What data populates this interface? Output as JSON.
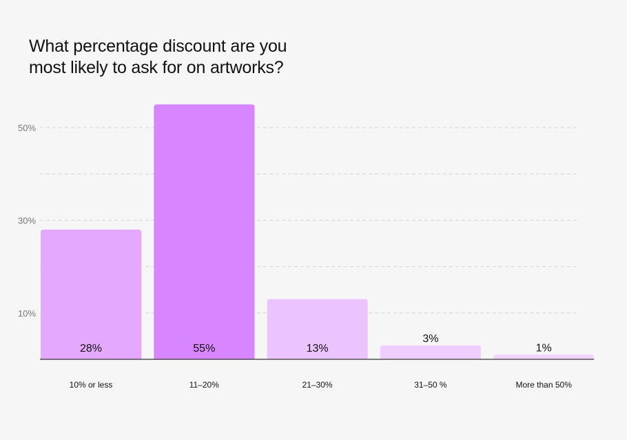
{
  "chart_data": {
    "type": "bar",
    "title_lines": [
      "What percentage discount are you",
      "most likely to ask for on artworks?"
    ],
    "categories": [
      "10% or less",
      "11–20%",
      "21–30%",
      "31–50 %",
      "More than 50%"
    ],
    "values": [
      28,
      55,
      13,
      3,
      1
    ],
    "value_labels": [
      "28%",
      "55%",
      "13%",
      "3%",
      "1%"
    ],
    "bar_colors": [
      "#e5a8ff",
      "#d886ff",
      "#ebc4ff",
      "#f0cdff",
      "#f2d4ff"
    ],
    "ylim": [
      0,
      60
    ],
    "y_ticks": [
      10,
      30,
      50
    ],
    "y_tick_labels": [
      "10%",
      "30%",
      "50%"
    ],
    "gridlines": [
      10,
      20,
      30,
      40,
      50
    ],
    "grid": true,
    "legend": "none",
    "xlabel": "",
    "ylabel": ""
  }
}
